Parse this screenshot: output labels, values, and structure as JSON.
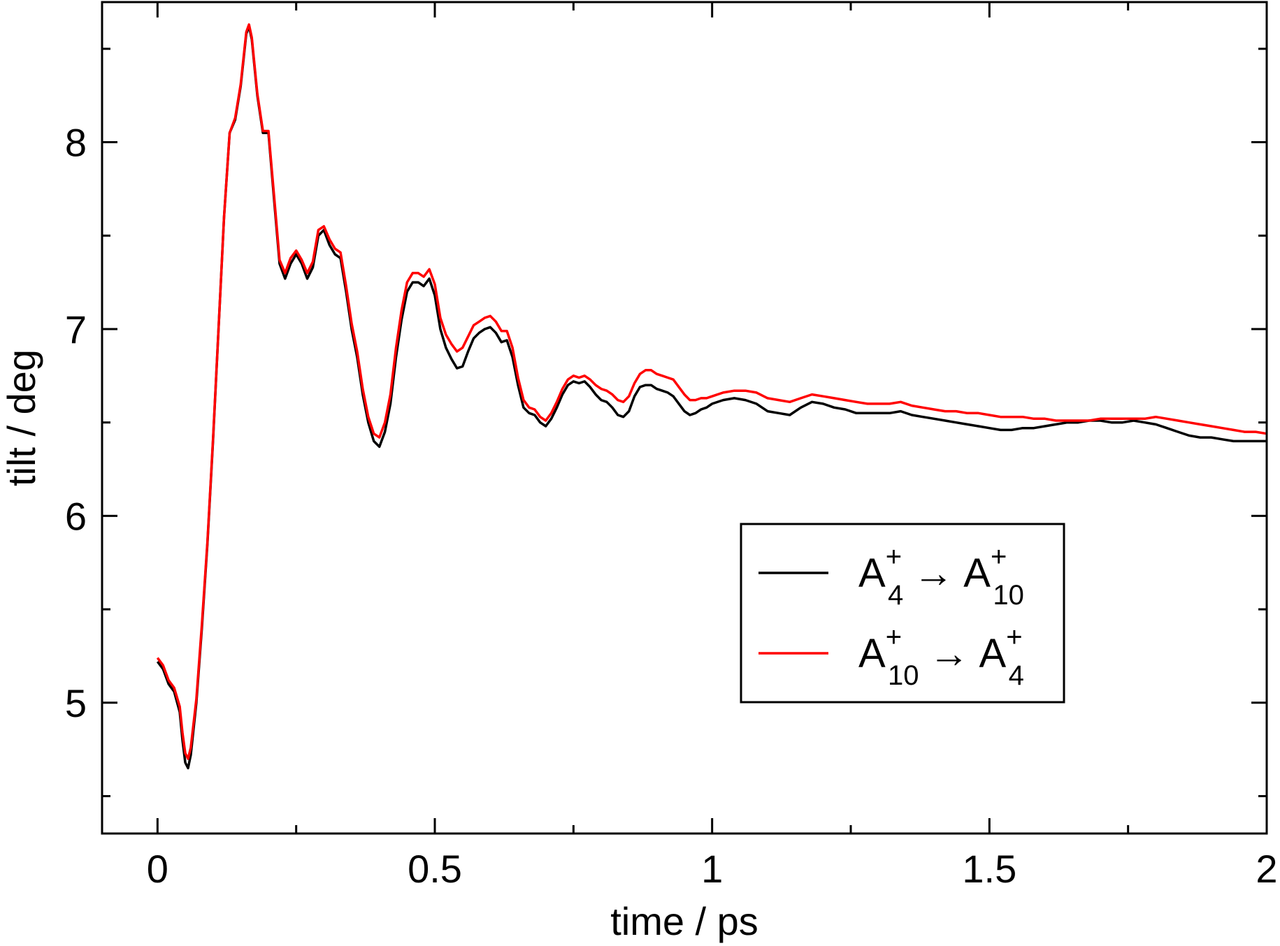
{
  "chart_data": {
    "type": "line",
    "xlabel": "time / ps",
    "ylabel": "tilt / deg",
    "xlim": [
      -0.1,
      2.0
    ],
    "ylim": [
      4.3,
      8.75
    ],
    "x_ticks": [
      0,
      0.5,
      1,
      1.5,
      2
    ],
    "x_tick_labels": [
      "0",
      "0.5",
      "1",
      "1.5",
      "2"
    ],
    "y_ticks": [
      5,
      6,
      7,
      8
    ],
    "y_tick_labels": [
      "5",
      "6",
      "7",
      "8"
    ],
    "x_minor_ticks": [
      0.25,
      0.75,
      1.25,
      1.75
    ],
    "y_minor_ticks": [
      4.5,
      5.5,
      6.5,
      7.5,
      8.5
    ],
    "legend_position": "lower-right",
    "grid": false,
    "series": [
      {
        "name_parts": {
          "base1": "A",
          "sup1": "+",
          "sub1": "4",
          "arrow": "→",
          "base2": "A",
          "sup2": "+",
          "sub2": "10"
        },
        "color": "#000000",
        "points": [
          [
            0.0,
            5.22
          ],
          [
            0.01,
            5.18
          ],
          [
            0.02,
            5.1
          ],
          [
            0.03,
            5.06
          ],
          [
            0.04,
            4.95
          ],
          [
            0.045,
            4.8
          ],
          [
            0.05,
            4.68
          ],
          [
            0.055,
            4.65
          ],
          [
            0.06,
            4.72
          ],
          [
            0.07,
            5.0
          ],
          [
            0.08,
            5.4
          ],
          [
            0.09,
            5.85
          ],
          [
            0.1,
            6.4
          ],
          [
            0.11,
            7.0
          ],
          [
            0.12,
            7.6
          ],
          [
            0.13,
            8.05
          ],
          [
            0.14,
            8.12
          ],
          [
            0.15,
            8.3
          ],
          [
            0.16,
            8.58
          ],
          [
            0.165,
            8.62
          ],
          [
            0.17,
            8.55
          ],
          [
            0.18,
            8.25
          ],
          [
            0.19,
            8.05
          ],
          [
            0.2,
            8.05
          ],
          [
            0.21,
            7.7
          ],
          [
            0.22,
            7.35
          ],
          [
            0.23,
            7.27
          ],
          [
            0.24,
            7.35
          ],
          [
            0.25,
            7.4
          ],
          [
            0.26,
            7.35
          ],
          [
            0.27,
            7.27
          ],
          [
            0.28,
            7.33
          ],
          [
            0.29,
            7.5
          ],
          [
            0.3,
            7.53
          ],
          [
            0.31,
            7.45
          ],
          [
            0.32,
            7.4
          ],
          [
            0.33,
            7.38
          ],
          [
            0.34,
            7.2
          ],
          [
            0.35,
            7.0
          ],
          [
            0.36,
            6.85
          ],
          [
            0.37,
            6.65
          ],
          [
            0.38,
            6.5
          ],
          [
            0.39,
            6.4
          ],
          [
            0.4,
            6.37
          ],
          [
            0.41,
            6.45
          ],
          [
            0.42,
            6.6
          ],
          [
            0.43,
            6.85
          ],
          [
            0.44,
            7.05
          ],
          [
            0.45,
            7.2
          ],
          [
            0.46,
            7.25
          ],
          [
            0.47,
            7.25
          ],
          [
            0.48,
            7.23
          ],
          [
            0.49,
            7.27
          ],
          [
            0.5,
            7.18
          ],
          [
            0.51,
            7.0
          ],
          [
            0.52,
            6.9
          ],
          [
            0.53,
            6.84
          ],
          [
            0.54,
            6.79
          ],
          [
            0.55,
            6.8
          ],
          [
            0.56,
            6.88
          ],
          [
            0.57,
            6.95
          ],
          [
            0.58,
            6.98
          ],
          [
            0.59,
            7.0
          ],
          [
            0.6,
            7.01
          ],
          [
            0.61,
            6.98
          ],
          [
            0.62,
            6.93
          ],
          [
            0.63,
            6.94
          ],
          [
            0.64,
            6.85
          ],
          [
            0.65,
            6.7
          ],
          [
            0.66,
            6.58
          ],
          [
            0.67,
            6.55
          ],
          [
            0.68,
            6.54
          ],
          [
            0.69,
            6.5
          ],
          [
            0.7,
            6.48
          ],
          [
            0.71,
            6.52
          ],
          [
            0.72,
            6.58
          ],
          [
            0.73,
            6.65
          ],
          [
            0.74,
            6.7
          ],
          [
            0.75,
            6.72
          ],
          [
            0.76,
            6.71
          ],
          [
            0.77,
            6.72
          ],
          [
            0.78,
            6.69
          ],
          [
            0.79,
            6.65
          ],
          [
            0.8,
            6.62
          ],
          [
            0.81,
            6.61
          ],
          [
            0.82,
            6.58
          ],
          [
            0.83,
            6.54
          ],
          [
            0.84,
            6.53
          ],
          [
            0.85,
            6.56
          ],
          [
            0.86,
            6.64
          ],
          [
            0.87,
            6.69
          ],
          [
            0.88,
            6.7
          ],
          [
            0.89,
            6.7
          ],
          [
            0.9,
            6.68
          ],
          [
            0.91,
            6.67
          ],
          [
            0.92,
            6.66
          ],
          [
            0.93,
            6.64
          ],
          [
            0.94,
            6.6
          ],
          [
            0.95,
            6.56
          ],
          [
            0.96,
            6.54
          ],
          [
            0.97,
            6.55
          ],
          [
            0.98,
            6.57
          ],
          [
            0.99,
            6.58
          ],
          [
            1.0,
            6.6
          ],
          [
            1.02,
            6.62
          ],
          [
            1.04,
            6.63
          ],
          [
            1.06,
            6.62
          ],
          [
            1.08,
            6.6
          ],
          [
            1.1,
            6.56
          ],
          [
            1.12,
            6.55
          ],
          [
            1.14,
            6.54
          ],
          [
            1.16,
            6.58
          ],
          [
            1.18,
            6.61
          ],
          [
            1.2,
            6.6
          ],
          [
            1.22,
            6.58
          ],
          [
            1.24,
            6.57
          ],
          [
            1.26,
            6.55
          ],
          [
            1.28,
            6.55
          ],
          [
            1.3,
            6.55
          ],
          [
            1.32,
            6.55
          ],
          [
            1.34,
            6.56
          ],
          [
            1.36,
            6.54
          ],
          [
            1.38,
            6.53
          ],
          [
            1.4,
            6.52
          ],
          [
            1.42,
            6.51
          ],
          [
            1.44,
            6.5
          ],
          [
            1.46,
            6.49
          ],
          [
            1.48,
            6.48
          ],
          [
            1.5,
            6.47
          ],
          [
            1.52,
            6.46
          ],
          [
            1.54,
            6.46
          ],
          [
            1.56,
            6.47
          ],
          [
            1.58,
            6.47
          ],
          [
            1.6,
            6.48
          ],
          [
            1.62,
            6.49
          ],
          [
            1.64,
            6.5
          ],
          [
            1.66,
            6.5
          ],
          [
            1.68,
            6.51
          ],
          [
            1.7,
            6.51
          ],
          [
            1.72,
            6.5
          ],
          [
            1.74,
            6.5
          ],
          [
            1.76,
            6.51
          ],
          [
            1.78,
            6.5
          ],
          [
            1.8,
            6.49
          ],
          [
            1.82,
            6.47
          ],
          [
            1.84,
            6.45
          ],
          [
            1.86,
            6.43
          ],
          [
            1.88,
            6.42
          ],
          [
            1.9,
            6.42
          ],
          [
            1.92,
            6.41
          ],
          [
            1.94,
            6.4
          ],
          [
            1.96,
            6.4
          ],
          [
            1.98,
            6.4
          ],
          [
            2.0,
            6.4
          ]
        ]
      },
      {
        "name_parts": {
          "base1": "A",
          "sup1": "+",
          "sub1": "10",
          "arrow": "→",
          "base2": "A",
          "sup2": "+",
          "sub2": "4"
        },
        "color": "#ff0000",
        "points": [
          [
            0.0,
            5.24
          ],
          [
            0.01,
            5.2
          ],
          [
            0.02,
            5.12
          ],
          [
            0.03,
            5.08
          ],
          [
            0.04,
            4.98
          ],
          [
            0.045,
            4.84
          ],
          [
            0.05,
            4.73
          ],
          [
            0.055,
            4.7
          ],
          [
            0.06,
            4.76
          ],
          [
            0.07,
            5.02
          ],
          [
            0.08,
            5.42
          ],
          [
            0.09,
            5.86
          ],
          [
            0.1,
            6.41
          ],
          [
            0.11,
            7.0
          ],
          [
            0.12,
            7.6
          ],
          [
            0.13,
            8.05
          ],
          [
            0.14,
            8.13
          ],
          [
            0.15,
            8.31
          ],
          [
            0.16,
            8.59
          ],
          [
            0.165,
            8.63
          ],
          [
            0.17,
            8.56
          ],
          [
            0.18,
            8.26
          ],
          [
            0.19,
            8.06
          ],
          [
            0.2,
            8.06
          ],
          [
            0.21,
            7.72
          ],
          [
            0.22,
            7.37
          ],
          [
            0.23,
            7.3
          ],
          [
            0.24,
            7.38
          ],
          [
            0.25,
            7.42
          ],
          [
            0.26,
            7.37
          ],
          [
            0.27,
            7.3
          ],
          [
            0.28,
            7.36
          ],
          [
            0.29,
            7.53
          ],
          [
            0.3,
            7.55
          ],
          [
            0.31,
            7.48
          ],
          [
            0.32,
            7.43
          ],
          [
            0.33,
            7.41
          ],
          [
            0.34,
            7.23
          ],
          [
            0.35,
            7.03
          ],
          [
            0.36,
            6.88
          ],
          [
            0.37,
            6.68
          ],
          [
            0.38,
            6.53
          ],
          [
            0.39,
            6.44
          ],
          [
            0.4,
            6.42
          ],
          [
            0.41,
            6.5
          ],
          [
            0.42,
            6.65
          ],
          [
            0.43,
            6.9
          ],
          [
            0.44,
            7.1
          ],
          [
            0.45,
            7.25
          ],
          [
            0.46,
            7.3
          ],
          [
            0.47,
            7.3
          ],
          [
            0.48,
            7.28
          ],
          [
            0.49,
            7.32
          ],
          [
            0.5,
            7.24
          ],
          [
            0.51,
            7.06
          ],
          [
            0.52,
            6.97
          ],
          [
            0.53,
            6.92
          ],
          [
            0.54,
            6.88
          ],
          [
            0.55,
            6.9
          ],
          [
            0.56,
            6.96
          ],
          [
            0.57,
            7.02
          ],
          [
            0.58,
            7.04
          ],
          [
            0.59,
            7.06
          ],
          [
            0.6,
            7.07
          ],
          [
            0.61,
            7.04
          ],
          [
            0.62,
            6.99
          ],
          [
            0.63,
            6.99
          ],
          [
            0.64,
            6.9
          ],
          [
            0.65,
            6.74
          ],
          [
            0.66,
            6.62
          ],
          [
            0.67,
            6.58
          ],
          [
            0.68,
            6.57
          ],
          [
            0.69,
            6.53
          ],
          [
            0.7,
            6.51
          ],
          [
            0.71,
            6.55
          ],
          [
            0.72,
            6.61
          ],
          [
            0.73,
            6.68
          ],
          [
            0.74,
            6.73
          ],
          [
            0.75,
            6.75
          ],
          [
            0.76,
            6.74
          ],
          [
            0.77,
            6.75
          ],
          [
            0.78,
            6.73
          ],
          [
            0.79,
            6.7
          ],
          [
            0.8,
            6.68
          ],
          [
            0.81,
            6.67
          ],
          [
            0.82,
            6.65
          ],
          [
            0.83,
            6.62
          ],
          [
            0.84,
            6.61
          ],
          [
            0.85,
            6.64
          ],
          [
            0.86,
            6.71
          ],
          [
            0.87,
            6.76
          ],
          [
            0.88,
            6.78
          ],
          [
            0.89,
            6.78
          ],
          [
            0.9,
            6.76
          ],
          [
            0.91,
            6.75
          ],
          [
            0.92,
            6.74
          ],
          [
            0.93,
            6.73
          ],
          [
            0.94,
            6.69
          ],
          [
            0.95,
            6.65
          ],
          [
            0.96,
            6.62
          ],
          [
            0.97,
            6.62
          ],
          [
            0.98,
            6.63
          ],
          [
            0.99,
            6.63
          ],
          [
            1.0,
            6.64
          ],
          [
            1.02,
            6.66
          ],
          [
            1.04,
            6.67
          ],
          [
            1.06,
            6.67
          ],
          [
            1.08,
            6.66
          ],
          [
            1.1,
            6.63
          ],
          [
            1.12,
            6.62
          ],
          [
            1.14,
            6.61
          ],
          [
            1.16,
            6.63
          ],
          [
            1.18,
            6.65
          ],
          [
            1.2,
            6.64
          ],
          [
            1.22,
            6.63
          ],
          [
            1.24,
            6.62
          ],
          [
            1.26,
            6.61
          ],
          [
            1.28,
            6.6
          ],
          [
            1.3,
            6.6
          ],
          [
            1.32,
            6.6
          ],
          [
            1.34,
            6.61
          ],
          [
            1.36,
            6.59
          ],
          [
            1.38,
            6.58
          ],
          [
            1.4,
            6.57
          ],
          [
            1.42,
            6.56
          ],
          [
            1.44,
            6.56
          ],
          [
            1.46,
            6.55
          ],
          [
            1.48,
            6.55
          ],
          [
            1.5,
            6.54
          ],
          [
            1.52,
            6.53
          ],
          [
            1.54,
            6.53
          ],
          [
            1.56,
            6.53
          ],
          [
            1.58,
            6.52
          ],
          [
            1.6,
            6.52
          ],
          [
            1.62,
            6.51
          ],
          [
            1.64,
            6.51
          ],
          [
            1.66,
            6.51
          ],
          [
            1.68,
            6.51
          ],
          [
            1.7,
            6.52
          ],
          [
            1.72,
            6.52
          ],
          [
            1.74,
            6.52
          ],
          [
            1.76,
            6.52
          ],
          [
            1.78,
            6.52
          ],
          [
            1.8,
            6.53
          ],
          [
            1.82,
            6.52
          ],
          [
            1.84,
            6.51
          ],
          [
            1.86,
            6.5
          ],
          [
            1.88,
            6.49
          ],
          [
            1.9,
            6.48
          ],
          [
            1.92,
            6.47
          ],
          [
            1.94,
            6.46
          ],
          [
            1.96,
            6.45
          ],
          [
            1.98,
            6.45
          ],
          [
            2.0,
            6.44
          ]
        ]
      }
    ]
  }
}
